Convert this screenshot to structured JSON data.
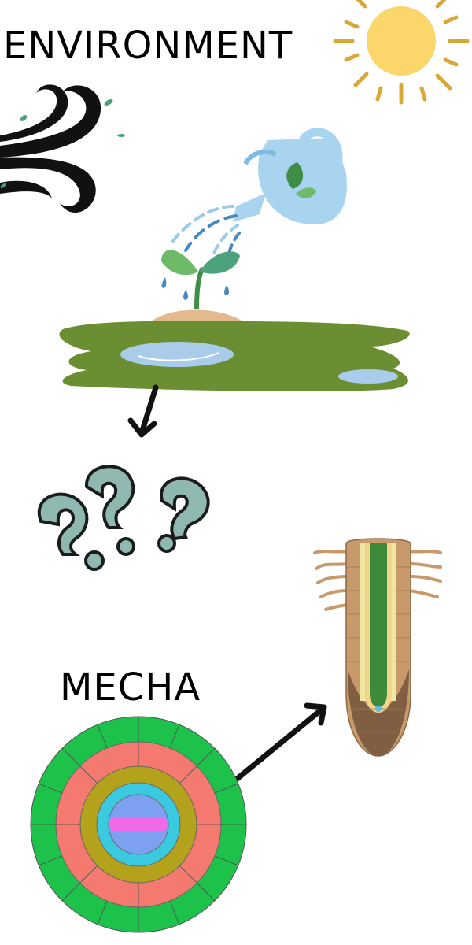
{
  "labels": {
    "environment": "ENVIRONMENT",
    "mecha": "MECHA"
  },
  "icons": [
    "sun-icon",
    "wind-icon",
    "watering-can-icon",
    "sprout-icon",
    "puddle-ground-icon",
    "question-marks-icon",
    "root-tip-icon",
    "root-cross-section-icon",
    "arrow-icon"
  ],
  "colors": {
    "sun": "#FBD66B",
    "sun_rays": "#D9A838",
    "watering_can": "#A8D4EF",
    "water_stream": "#4A88BE",
    "leaf": "#6FB96A",
    "ground": "#6B8E32",
    "puddle": "#A9CCEA",
    "question": "#8FB8B0",
    "root_outer": "#C89A6B",
    "root_stele": "#3C8A3A",
    "epidermis": "#1DC24A",
    "cortex_outer": "#F47A6F",
    "cortex_inner": "#B5A21C",
    "endodermis": "#3BC9E0",
    "pericycle": "#7EA0F0",
    "xylem": "#F06AE8"
  }
}
